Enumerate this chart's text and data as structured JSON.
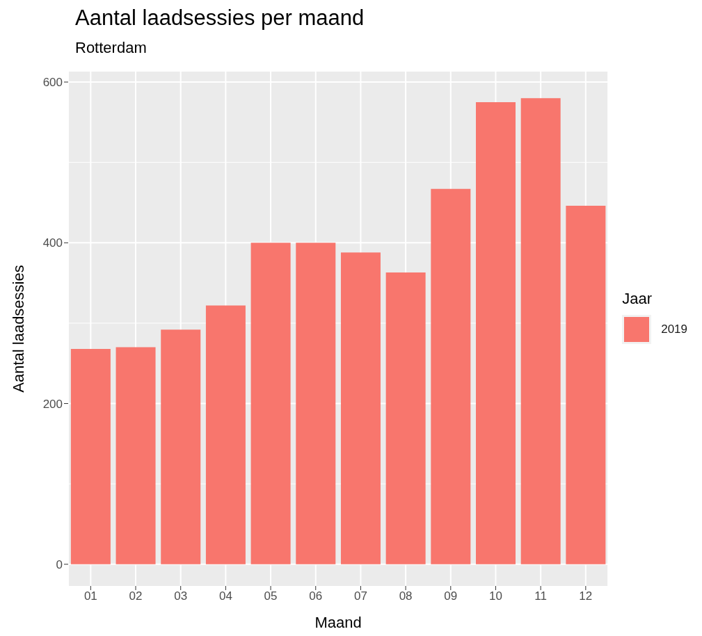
{
  "chart_data": {
    "type": "bar",
    "title": "Aantal laadsessies per maand",
    "subtitle": "Rotterdam",
    "xlabel": "Maand",
    "ylabel": "Aantal laadsessies",
    "legend_title": "Jaar",
    "categories": [
      "01",
      "02",
      "03",
      "04",
      "05",
      "06",
      "07",
      "08",
      "09",
      "10",
      "11",
      "12"
    ],
    "series": [
      {
        "name": "2019",
        "color": "#f8766d",
        "values": [
          268,
          270,
          292,
          322,
          400,
          400,
          388,
          363,
          467,
          575,
          580,
          446
        ]
      }
    ],
    "ylim": [
      -27,
      613
    ],
    "yticks": [
      0,
      200,
      400,
      600
    ],
    "grid": true,
    "legend": "right"
  }
}
